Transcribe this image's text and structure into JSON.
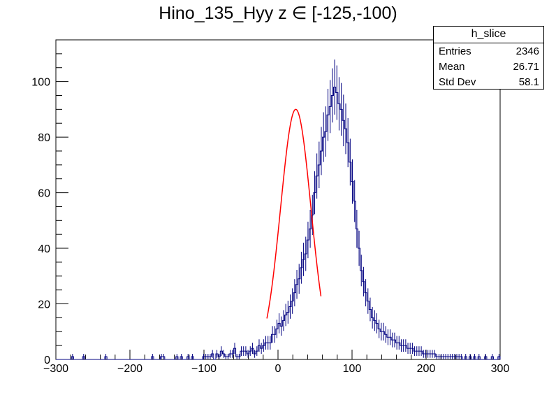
{
  "chart_data": {
    "type": "histogram",
    "title": "Hino_135_Hyy z  ∈ [-125,-100)",
    "xlim": [
      -300,
      300
    ],
    "ylim": [
      0,
      115
    ],
    "x_ticks": [
      -300,
      -200,
      -100,
      0,
      100,
      200,
      300
    ],
    "y_ticks": [
      0,
      20,
      40,
      60,
      80,
      100
    ],
    "grid": false,
    "bin_width": 3,
    "histogram_color": "#000080",
    "fit_color": "#ff0000",
    "fit": {
      "function": "gaussian",
      "amplitude": 90,
      "mean": 24,
      "sigma": 20.5,
      "range": [
        -15,
        58
      ]
    },
    "counts_approx": [
      0,
      0,
      0,
      0,
      0,
      0,
      0,
      1,
      0,
      0,
      0,
      0,
      1,
      0,
      0,
      0,
      0,
      0,
      0,
      0,
      0,
      0,
      1,
      0,
      0,
      0,
      0,
      0,
      0,
      0,
      0,
      0,
      0,
      0,
      0,
      0,
      0,
      0,
      0,
      0,
      0,
      0,
      0,
      1,
      0,
      0,
      0,
      1,
      1,
      0,
      0,
      0,
      0,
      0,
      1,
      0,
      1,
      0,
      0,
      1,
      0,
      1,
      0,
      0,
      0,
      0,
      1,
      1,
      1,
      1,
      2,
      0,
      2,
      1,
      3,
      2,
      1,
      1,
      2,
      2,
      4,
      1,
      1,
      3,
      3,
      3,
      2,
      3,
      4,
      2,
      3,
      5,
      4,
      5,
      6,
      6,
      6,
      9,
      9,
      11,
      13,
      12,
      14,
      16,
      17,
      19,
      21,
      24,
      27,
      29,
      33,
      36,
      38,
      43,
      47,
      52,
      60,
      66,
      70,
      75,
      80,
      82,
      88,
      91,
      95,
      98,
      96,
      92,
      90,
      86,
      83,
      78,
      71,
      64,
      57,
      47,
      40,
      32,
      28,
      24,
      21,
      18,
      15,
      14,
      13,
      11,
      10,
      10,
      9,
      8,
      8,
      7,
      7,
      6,
      6,
      5,
      5,
      5,
      4,
      4,
      4,
      3,
      3,
      3,
      3,
      2,
      2,
      2,
      2,
      2,
      2,
      1,
      1,
      1,
      1,
      1,
      1,
      1,
      1,
      1,
      1,
      1,
      1,
      0,
      1,
      0,
      1,
      0,
      1,
      0,
      1,
      0,
      0,
      1,
      0,
      0,
      1,
      0,
      0,
      1
    ]
  },
  "stats": {
    "name": "h_slice",
    "rows": [
      {
        "label": "Entries",
        "value": "2346"
      },
      {
        "label": "Mean",
        "value": "26.71"
      },
      {
        "label": "Std Dev",
        "value": "58.1"
      }
    ]
  }
}
